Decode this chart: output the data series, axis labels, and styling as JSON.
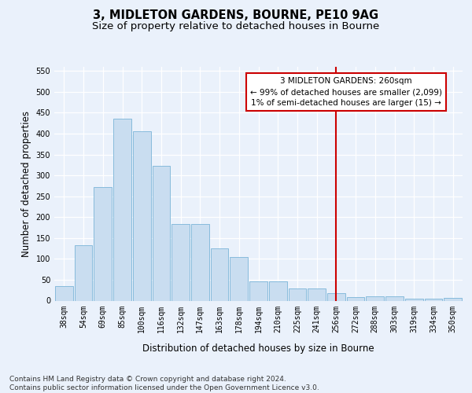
{
  "title": "3, MIDLETON GARDENS, BOURNE, PE10 9AG",
  "subtitle": "Size of property relative to detached houses in Bourne",
  "xlabel": "Distribution of detached houses by size in Bourne",
  "ylabel": "Number of detached properties",
  "bar_labels": [
    "38sqm",
    "54sqm",
    "69sqm",
    "85sqm",
    "100sqm",
    "116sqm",
    "132sqm",
    "147sqm",
    "163sqm",
    "178sqm",
    "194sqm",
    "210sqm",
    "225sqm",
    "241sqm",
    "256sqm",
    "272sqm",
    "288sqm",
    "303sqm",
    "319sqm",
    "334sqm",
    "350sqm"
  ],
  "bar_values": [
    35,
    132,
    272,
    435,
    405,
    322,
    184,
    184,
    126,
    105,
    46,
    46,
    29,
    29,
    17,
    8,
    10,
    10,
    5,
    4,
    6
  ],
  "bar_color": "#c9ddf0",
  "bar_edge_color": "#7ab4d8",
  "vline_x": 14,
  "vline_color": "#cc0000",
  "annotation_text": "3 MIDLETON GARDENS: 260sqm\n← 99% of detached houses are smaller (2,099)\n1% of semi-detached houses are larger (15) →",
  "annotation_box_color": "#cc0000",
  "ylim": [
    0,
    560
  ],
  "yticks": [
    0,
    50,
    100,
    150,
    200,
    250,
    300,
    350,
    400,
    450,
    500,
    550
  ],
  "footer": "Contains HM Land Registry data © Crown copyright and database right 2024.\nContains public sector information licensed under the Open Government Licence v3.0.",
  "bg_color": "#eaf1fb",
  "plot_bg_color": "#eaf1fb",
  "grid_color": "#ffffff",
  "title_fontsize": 10.5,
  "subtitle_fontsize": 9.5,
  "axis_label_fontsize": 8.5,
  "tick_fontsize": 7,
  "footer_fontsize": 6.5,
  "annotation_fontsize": 7.5
}
